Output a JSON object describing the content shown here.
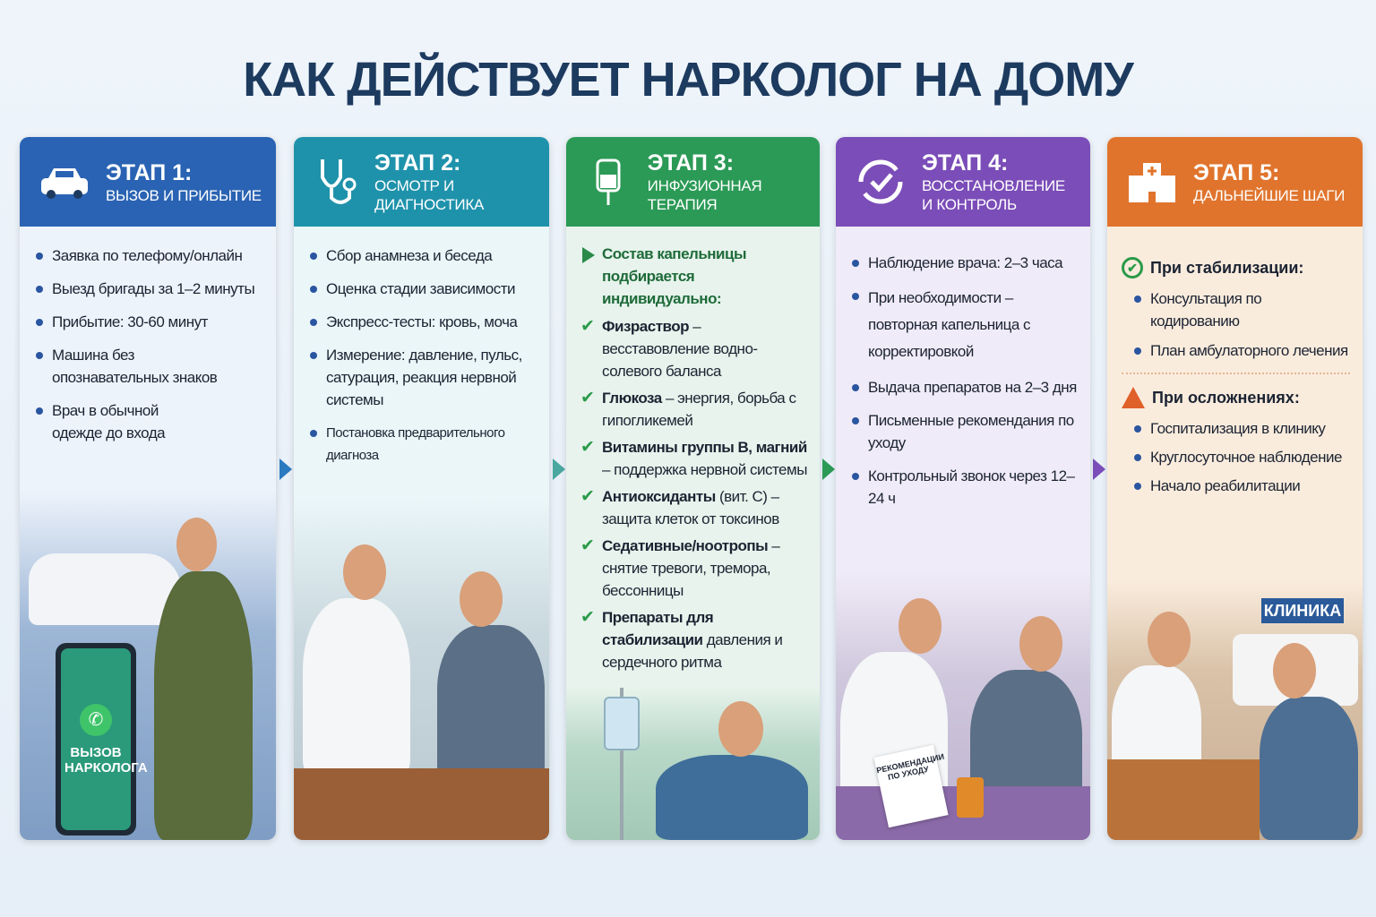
{
  "title": "КАК ДЕЙСТВУЕТ НАРКОЛОГ НА ДОМУ",
  "colors": {
    "stage1": "#2a63b3",
    "stage2": "#1f92ab",
    "stage3": "#2b9a56",
    "stage4": "#7b4db8",
    "stage5": "#e0742c",
    "title": "#1d3a5f"
  },
  "stages": [
    {
      "stage": "ЭТАП 1:",
      "subtitle": "Вызов и прибытие",
      "icon": "car-icon",
      "items": [
        "Заявка по телефому/онлайн",
        "Выезд бригады за 1–2 минуты",
        "Прибытие: 30-60 минут",
        "Машина без опознавательных знаков",
        "Врач в обычной одежде до входа"
      ],
      "phone_label": "ВЫЗОВ НАРКОЛОГА"
    },
    {
      "stage": "ЭТАП 2:",
      "subtitle": "Осмотр и диагностика",
      "icon": "stethoscope-icon",
      "items": [
        "Сбор анамнеза и беседа",
        "Оценка стадии зависимости",
        "Экспресс-тесты: кровь, моча",
        "Измерение: давление, пульс, сатурация, реакция нервной системы",
        "Постановка предварительного диагноза"
      ]
    },
    {
      "stage": "ЭТАП 3:",
      "subtitle": "Инфузионная терапия",
      "icon": "iv-drip-icon",
      "intro": "Состав капельницы подбирается индивидуально:",
      "items": [
        {
          "bold": "Физраствор",
          "text": " – весставовление водно-солевого баланса"
        },
        {
          "bold": "Глюкоза",
          "text": " – энергия, борьба с гипогликемей"
        },
        {
          "bold": "Витамины группы В, магний",
          "text": " – поддержка нервной системы"
        },
        {
          "bold": "Антиоксиданты",
          "text": " (вит. С) – защита клеток от токсинов"
        },
        {
          "bold": "Седативные/ноотропы",
          "text": " – снятие тревоги, тремора, бессонницы"
        },
        {
          "bold": "Препараты для стабилизации",
          "text": " давления и сердечного ритма"
        }
      ]
    },
    {
      "stage": "ЭТАП 4:",
      "subtitle": "Восстановление и контроль",
      "icon": "refresh-check-icon",
      "items": [
        "Наблюдение врача: 2–3 часа",
        "При необходимости – повторная капельница с корректировкой",
        "Выдача препаратов на 2–3 дня",
        "Письменные рекомендания по уходу",
        "Контрольный звонок через 12–24 ч"
      ],
      "paper_label": "РЕКОМЕНДАЦИИ ПО УХОДУ"
    },
    {
      "stage": "ЭТАП 5:",
      "subtitle": "Дальнейшие шаги",
      "icon": "hospital-icon",
      "stable_title": "При стабилизации:",
      "stable_items": [
        "Консультация по кодированию",
        "План амбулаторного лечения"
      ],
      "complication_title": "При осложнениях:",
      "complication_items": [
        "Госпитализация в клинику",
        "Круглосуточное наблюдение",
        "Начало реабилитации"
      ],
      "clinic_label": "КЛИНИКА"
    }
  ]
}
